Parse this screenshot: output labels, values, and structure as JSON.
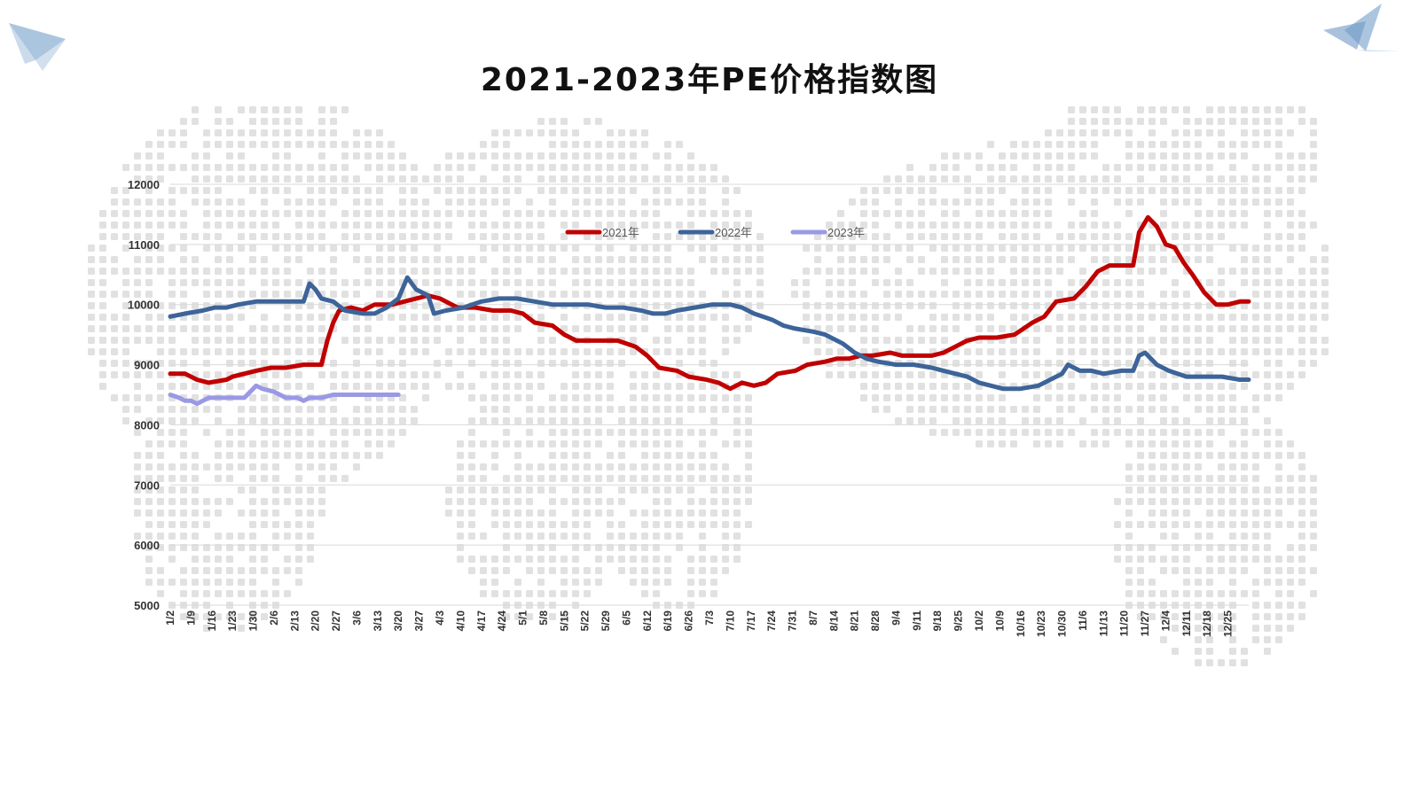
{
  "chart_data": {
    "type": "line",
    "title": "2021-2023年PE价格指数图",
    "xlabel": "",
    "ylabel": "",
    "ylim": [
      5000,
      12000
    ],
    "y_ticks": [
      "12000",
      "11000",
      "10000",
      "9000",
      "8000",
      "7000",
      "6000",
      "5000"
    ],
    "y_tick_values": [
      12000,
      11000,
      10000,
      9000,
      8000,
      7000,
      6000,
      5000
    ],
    "x_axis": "day of year, labels every 7 days",
    "x_range": [
      1,
      365
    ],
    "categories": [
      "1/2",
      "1/9",
      "1/16",
      "1/23",
      "1/30",
      "2/6",
      "2/13",
      "2/20",
      "2/27",
      "3/6",
      "3/13",
      "3/20",
      "3/27",
      "4/3",
      "4/10",
      "4/17",
      "4/24",
      "5/1",
      "5/8",
      "5/15",
      "5/22",
      "5/29",
      "6/5",
      "6/12",
      "6/19",
      "6/26",
      "7/3",
      "7/10",
      "7/17",
      "7/24",
      "7/31",
      "8/7",
      "8/14",
      "8/21",
      "8/28",
      "9/4",
      "9/11",
      "9/18",
      "9/25",
      "10/2",
      "10/9",
      "10/16",
      "10/23",
      "10/30",
      "11/6",
      "11/13",
      "11/20",
      "11/27",
      "12/4",
      "12/11",
      "12/18",
      "12/25"
    ],
    "grid": true,
    "legend_position": "top-center",
    "series": [
      {
        "name": "2021年",
        "color": "#c00000",
        "points": [
          [
            1,
            8850
          ],
          [
            6,
            8850
          ],
          [
            10,
            8750
          ],
          [
            14,
            8700
          ],
          [
            20,
            8750
          ],
          [
            22,
            8800
          ],
          [
            26,
            8850
          ],
          [
            30,
            8900
          ],
          [
            35,
            8950
          ],
          [
            40,
            8950
          ],
          [
            46,
            9000
          ],
          [
            52,
            9000
          ],
          [
            54,
            9400
          ],
          [
            56,
            9700
          ],
          [
            58,
            9900
          ],
          [
            62,
            9950
          ],
          [
            66,
            9900
          ],
          [
            70,
            10000
          ],
          [
            76,
            10000
          ],
          [
            80,
            10050
          ],
          [
            84,
            10100
          ],
          [
            88,
            10150
          ],
          [
            92,
            10100
          ],
          [
            98,
            9950
          ],
          [
            104,
            9950
          ],
          [
            110,
            9900
          ],
          [
            116,
            9900
          ],
          [
            120,
            9850
          ],
          [
            124,
            9700
          ],
          [
            130,
            9650
          ],
          [
            134,
            9500
          ],
          [
            138,
            9400
          ],
          [
            144,
            9400
          ],
          [
            152,
            9400
          ],
          [
            158,
            9300
          ],
          [
            162,
            9150
          ],
          [
            166,
            8950
          ],
          [
            172,
            8900
          ],
          [
            176,
            8800
          ],
          [
            182,
            8750
          ],
          [
            186,
            8700
          ],
          [
            190,
            8600
          ],
          [
            194,
            8700
          ],
          [
            198,
            8650
          ],
          [
            202,
            8700
          ],
          [
            206,
            8850
          ],
          [
            212,
            8900
          ],
          [
            216,
            9000
          ],
          [
            222,
            9050
          ],
          [
            226,
            9100
          ],
          [
            230,
            9100
          ],
          [
            234,
            9150
          ],
          [
            238,
            9150
          ],
          [
            244,
            9200
          ],
          [
            248,
            9150
          ],
          [
            254,
            9150
          ],
          [
            258,
            9150
          ],
          [
            262,
            9200
          ],
          [
            266,
            9300
          ],
          [
            270,
            9400
          ],
          [
            274,
            9450
          ],
          [
            280,
            9450
          ],
          [
            286,
            9500
          ],
          [
            292,
            9700
          ],
          [
            296,
            9800
          ],
          [
            300,
            10050
          ],
          [
            306,
            10100
          ],
          [
            310,
            10300
          ],
          [
            314,
            10550
          ],
          [
            318,
            10650
          ],
          [
            322,
            10650
          ],
          [
            326,
            10650
          ],
          [
            328,
            11200
          ],
          [
            331,
            11450
          ],
          [
            334,
            11300
          ],
          [
            337,
            11000
          ],
          [
            340,
            10950
          ],
          [
            343,
            10700
          ],
          [
            346,
            10500
          ],
          [
            350,
            10200
          ],
          [
            354,
            10000
          ],
          [
            358,
            10000
          ],
          [
            362,
            10050
          ],
          [
            365,
            10050
          ]
        ]
      },
      {
        "name": "2022年",
        "color": "#3d6499",
        "points": [
          [
            1,
            9800
          ],
          [
            6,
            9850
          ],
          [
            12,
            9900
          ],
          [
            16,
            9950
          ],
          [
            20,
            9950
          ],
          [
            24,
            10000
          ],
          [
            30,
            10050
          ],
          [
            36,
            10050
          ],
          [
            42,
            10050
          ],
          [
            46,
            10050
          ],
          [
            48,
            10350
          ],
          [
            50,
            10250
          ],
          [
            52,
            10100
          ],
          [
            56,
            10050
          ],
          [
            60,
            9900
          ],
          [
            66,
            9850
          ],
          [
            70,
            9850
          ],
          [
            74,
            9950
          ],
          [
            78,
            10100
          ],
          [
            81,
            10450
          ],
          [
            84,
            10250
          ],
          [
            86,
            10200
          ],
          [
            88,
            10150
          ],
          [
            90,
            9850
          ],
          [
            94,
            9900
          ],
          [
            100,
            9950
          ],
          [
            106,
            10050
          ],
          [
            112,
            10100
          ],
          [
            118,
            10100
          ],
          [
            124,
            10050
          ],
          [
            130,
            10000
          ],
          [
            136,
            10000
          ],
          [
            142,
            10000
          ],
          [
            148,
            9950
          ],
          [
            154,
            9950
          ],
          [
            160,
            9900
          ],
          [
            164,
            9850
          ],
          [
            168,
            9850
          ],
          [
            172,
            9900
          ],
          [
            178,
            9950
          ],
          [
            184,
            10000
          ],
          [
            190,
            10000
          ],
          [
            194,
            9950
          ],
          [
            198,
            9850
          ],
          [
            204,
            9750
          ],
          [
            208,
            9650
          ],
          [
            212,
            9600
          ],
          [
            218,
            9550
          ],
          [
            222,
            9500
          ],
          [
            226,
            9400
          ],
          [
            228,
            9350
          ],
          [
            232,
            9200
          ],
          [
            236,
            9100
          ],
          [
            240,
            9050
          ],
          [
            246,
            9000
          ],
          [
            252,
            9000
          ],
          [
            258,
            8950
          ],
          [
            262,
            8900
          ],
          [
            266,
            8850
          ],
          [
            270,
            8800
          ],
          [
            274,
            8700
          ],
          [
            278,
            8650
          ],
          [
            282,
            8600
          ],
          [
            288,
            8600
          ],
          [
            294,
            8650
          ],
          [
            298,
            8750
          ],
          [
            302,
            8850
          ],
          [
            304,
            9000
          ],
          [
            308,
            8900
          ],
          [
            312,
            8900
          ],
          [
            316,
            8850
          ],
          [
            322,
            8900
          ],
          [
            326,
            8900
          ],
          [
            328,
            9150
          ],
          [
            330,
            9200
          ],
          [
            334,
            9000
          ],
          [
            338,
            8900
          ],
          [
            344,
            8800
          ],
          [
            350,
            8800
          ],
          [
            356,
            8800
          ],
          [
            362,
            8750
          ],
          [
            365,
            8750
          ]
        ]
      },
      {
        "name": "2023年",
        "color": "#9999e6",
        "points": [
          [
            1,
            8500
          ],
          [
            4,
            8450
          ],
          [
            6,
            8400
          ],
          [
            8,
            8400
          ],
          [
            10,
            8350
          ],
          [
            12,
            8400
          ],
          [
            14,
            8450
          ],
          [
            18,
            8450
          ],
          [
            22,
            8450
          ],
          [
            26,
            8450
          ],
          [
            28,
            8550
          ],
          [
            30,
            8650
          ],
          [
            32,
            8600
          ],
          [
            36,
            8550
          ],
          [
            38,
            8500
          ],
          [
            40,
            8450
          ],
          [
            44,
            8450
          ],
          [
            46,
            8400
          ],
          [
            48,
            8450
          ],
          [
            52,
            8450
          ],
          [
            56,
            8500
          ],
          [
            60,
            8500
          ],
          [
            64,
            8500
          ],
          [
            68,
            8500
          ],
          [
            72,
            8500
          ],
          [
            76,
            8500
          ],
          [
            78,
            8500
          ]
        ]
      }
    ]
  }
}
